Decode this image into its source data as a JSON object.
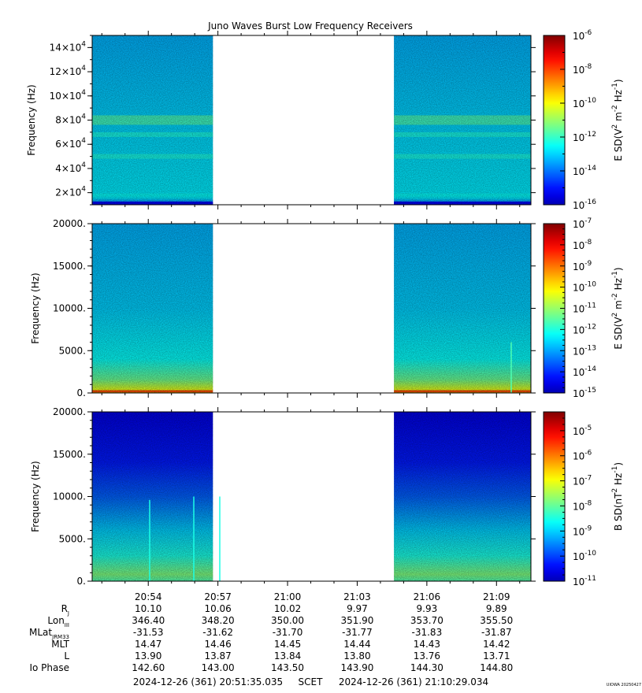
{
  "chart_data": {
    "type": "heatmap",
    "title": "Juno Waves Burst Low Frequency Receivers",
    "panels": [
      {
        "id": "p1",
        "ylabel": "Frequency (Hz)",
        "ylim": [
          10000,
          150000
        ],
        "yticks": [
          {
            "v": 20000,
            "base": "2×10",
            "exp": "4"
          },
          {
            "v": 40000,
            "base": "4×10",
            "exp": "4"
          },
          {
            "v": 60000,
            "base": "6×10",
            "exp": "4"
          },
          {
            "v": 80000,
            "base": "8×10",
            "exp": "4"
          },
          {
            "v": 100000,
            "base": "10×10",
            "exp": "4"
          },
          {
            "v": 120000,
            "base": "12×10",
            "exp": "4"
          },
          {
            "v": 140000,
            "base": "14×10",
            "exp": "4"
          }
        ],
        "colorbar": {
          "label_pre": "E SD(V",
          "label_exp1": "2",
          "label_mid": " m",
          "label_exp2": "-2",
          "label_mid2": " Hz",
          "label_exp3": "-1",
          "label_post": ")",
          "log_range": [
            -16,
            -6
          ],
          "ticks": [
            {
              "base": "10",
              "exp": "-6"
            },
            {
              "base": "10",
              "exp": "-8"
            },
            {
              "base": "10",
              "exp": "-10"
            },
            {
              "base": "10",
              "exp": "-12"
            },
            {
              "base": "10",
              "exp": "-14"
            },
            {
              "base": "10",
              "exp": "-16"
            }
          ],
          "tick_exps": [
            -6,
            -8,
            -10,
            -12,
            -14,
            -16
          ]
        }
      },
      {
        "id": "p2",
        "ylabel": "Frequency (Hz)",
        "ylim": [
          0,
          20000
        ],
        "yticks": [
          {
            "v": 0,
            "label": "0."
          },
          {
            "v": 5000,
            "label": "5000."
          },
          {
            "v": 10000,
            "label": "10000."
          },
          {
            "v": 15000,
            "label": "15000."
          },
          {
            "v": 20000,
            "label": "20000."
          }
        ],
        "colorbar": {
          "label_pre": "E SD(V",
          "label_exp1": "2",
          "label_mid": " m",
          "label_exp2": "-2",
          "label_mid2": " Hz",
          "label_exp3": "-1",
          "label_post": ")",
          "log_range": [
            -15,
            -7
          ],
          "ticks": [
            {
              "base": "10",
              "exp": "-7"
            },
            {
              "base": "10",
              "exp": "-8"
            },
            {
              "base": "10",
              "exp": "-9"
            },
            {
              "base": "10",
              "exp": "-10"
            },
            {
              "base": "10",
              "exp": "-11"
            },
            {
              "base": "10",
              "exp": "-12"
            },
            {
              "base": "10",
              "exp": "-13"
            },
            {
              "base": "10",
              "exp": "-14"
            },
            {
              "base": "10",
              "exp": "-15"
            }
          ],
          "tick_exps": [
            -7,
            -8,
            -9,
            -10,
            -11,
            -12,
            -13,
            -14,
            -15
          ]
        }
      },
      {
        "id": "p3",
        "ylabel": "Frequency (Hz)",
        "ylim": [
          0,
          20000
        ],
        "yticks": [
          {
            "v": 0,
            "label": "0."
          },
          {
            "v": 5000,
            "label": "5000."
          },
          {
            "v": 10000,
            "label": "10000."
          },
          {
            "v": 15000,
            "label": "15000."
          },
          {
            "v": 20000,
            "label": "20000."
          }
        ],
        "colorbar": {
          "label_pre": "B SD(nT",
          "label_exp1": "2",
          "label_mid": " Hz",
          "label_exp2": "-1",
          "label_mid2": "",
          "label_exp3": "",
          "label_post": ")",
          "log_range": [
            -11,
            -4.25
          ],
          "ticks": [
            {
              "base": "10",
              "exp": "-5"
            },
            {
              "base": "10",
              "exp": "-6"
            },
            {
              "base": "10",
              "exp": "-7"
            },
            {
              "base": "10",
              "exp": "-8"
            },
            {
              "base": "10",
              "exp": "-9"
            },
            {
              "base": "10",
              "exp": "-10"
            },
            {
              "base": "10",
              "exp": "-11"
            }
          ],
          "tick_exps": [
            -5,
            -6,
            -7,
            -8,
            -9,
            -10,
            -11
          ]
        }
      }
    ],
    "x_time": {
      "start_label": "2024-12-26 (361) 20:51:35.035",
      "end_label": "2024-12-26 (361) 21:10:29.034",
      "scet_label": "SCET",
      "range_sec": [
        0,
        1134
      ],
      "data_gap_sec": [
        312,
        780
      ],
      "major_ticks": [
        {
          "t": 145,
          "label": "20:54"
        },
        {
          "t": 325,
          "label": "20:57"
        },
        {
          "t": 505,
          "label": "21:00"
        },
        {
          "t": 685,
          "label": "21:03"
        },
        {
          "t": 865,
          "label": "21:06"
        },
        {
          "t": 1045,
          "label": "21:09"
        }
      ],
      "minor_ticks": [
        25,
        85,
        205,
        265,
        385,
        445,
        565,
        625,
        745,
        805,
        925,
        985,
        1105
      ]
    },
    "ephemeris": [
      {
        "label": "R",
        "sub": "J",
        "values": [
          "10.10",
          "10.06",
          "10.02",
          "9.97",
          "9.93",
          "9.89"
        ]
      },
      {
        "label": "Lon",
        "sub": "III",
        "values": [
          "346.40",
          "348.20",
          "350.00",
          "351.90",
          "353.70",
          "355.50"
        ]
      },
      {
        "label": "MLat",
        "sub": "JRM33",
        "values": [
          "-31.53",
          "-31.62",
          "-31.70",
          "-31.77",
          "-31.83",
          "-31.87"
        ]
      },
      {
        "label": "MLT",
        "sub": "",
        "values": [
          "14.47",
          "14.46",
          "14.45",
          "14.44",
          "14.43",
          "14.42"
        ]
      },
      {
        "label": "L",
        "sub": "",
        "values": [
          "13.90",
          "13.87",
          "13.84",
          "13.80",
          "13.76",
          "13.71"
        ]
      },
      {
        "label": "Io Phase",
        "sub": "",
        "values": [
          "142.60",
          "143.00",
          "143.50",
          "143.90",
          "144.30",
          "144.80"
        ]
      }
    ],
    "credit": "UIOWA 20250427"
  }
}
